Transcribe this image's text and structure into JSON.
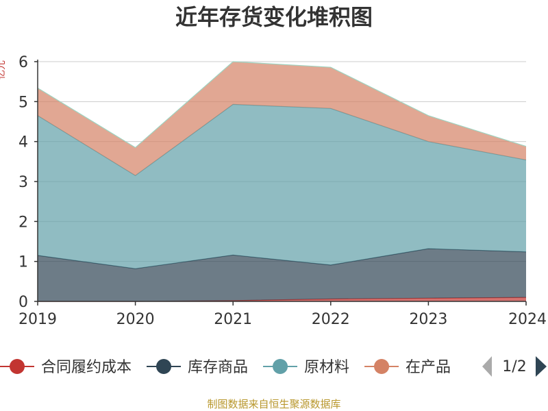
{
  "chart_data": {
    "type": "area",
    "stacked": true,
    "title": "近年存货变化堆积图",
    "ylabel": "亿元",
    "x": [
      "2019",
      "2020",
      "2021",
      "2022",
      "2023",
      "2024"
    ],
    "ylim": [
      0,
      6
    ],
    "yticks": [
      "0",
      "1",
      "2",
      "3",
      "4",
      "5",
      "6"
    ],
    "grid": true,
    "legend_position": "bottom",
    "series": [
      {
        "name": "合同履约成本",
        "color": "#c23531",
        "values": [
          0.0,
          0.0,
          0.02,
          0.06,
          0.08,
          0.1
        ]
      },
      {
        "name": "库存商品",
        "color": "#2f4554",
        "values": [
          1.15,
          0.82,
          1.14,
          0.85,
          1.24,
          1.14
        ]
      },
      {
        "name": "原材料",
        "color": "#61a0a8",
        "values": [
          3.5,
          2.33,
          3.77,
          3.92,
          2.68,
          2.3
        ]
      },
      {
        "name": "在产品",
        "color": "#d48265",
        "values": [
          0.69,
          0.7,
          1.07,
          1.03,
          0.65,
          0.34
        ]
      }
    ]
  },
  "legend": {
    "items": [
      {
        "label": "合同履约成本",
        "color": "#c23531"
      },
      {
        "label": "库存商品",
        "color": "#2f4554"
      },
      {
        "label": "原材料",
        "color": "#61a0a8"
      },
      {
        "label": "在产品",
        "color": "#d48265"
      }
    ],
    "page_indicator": "1/2"
  },
  "source_text": "制图数据来自恒生聚源数据库"
}
